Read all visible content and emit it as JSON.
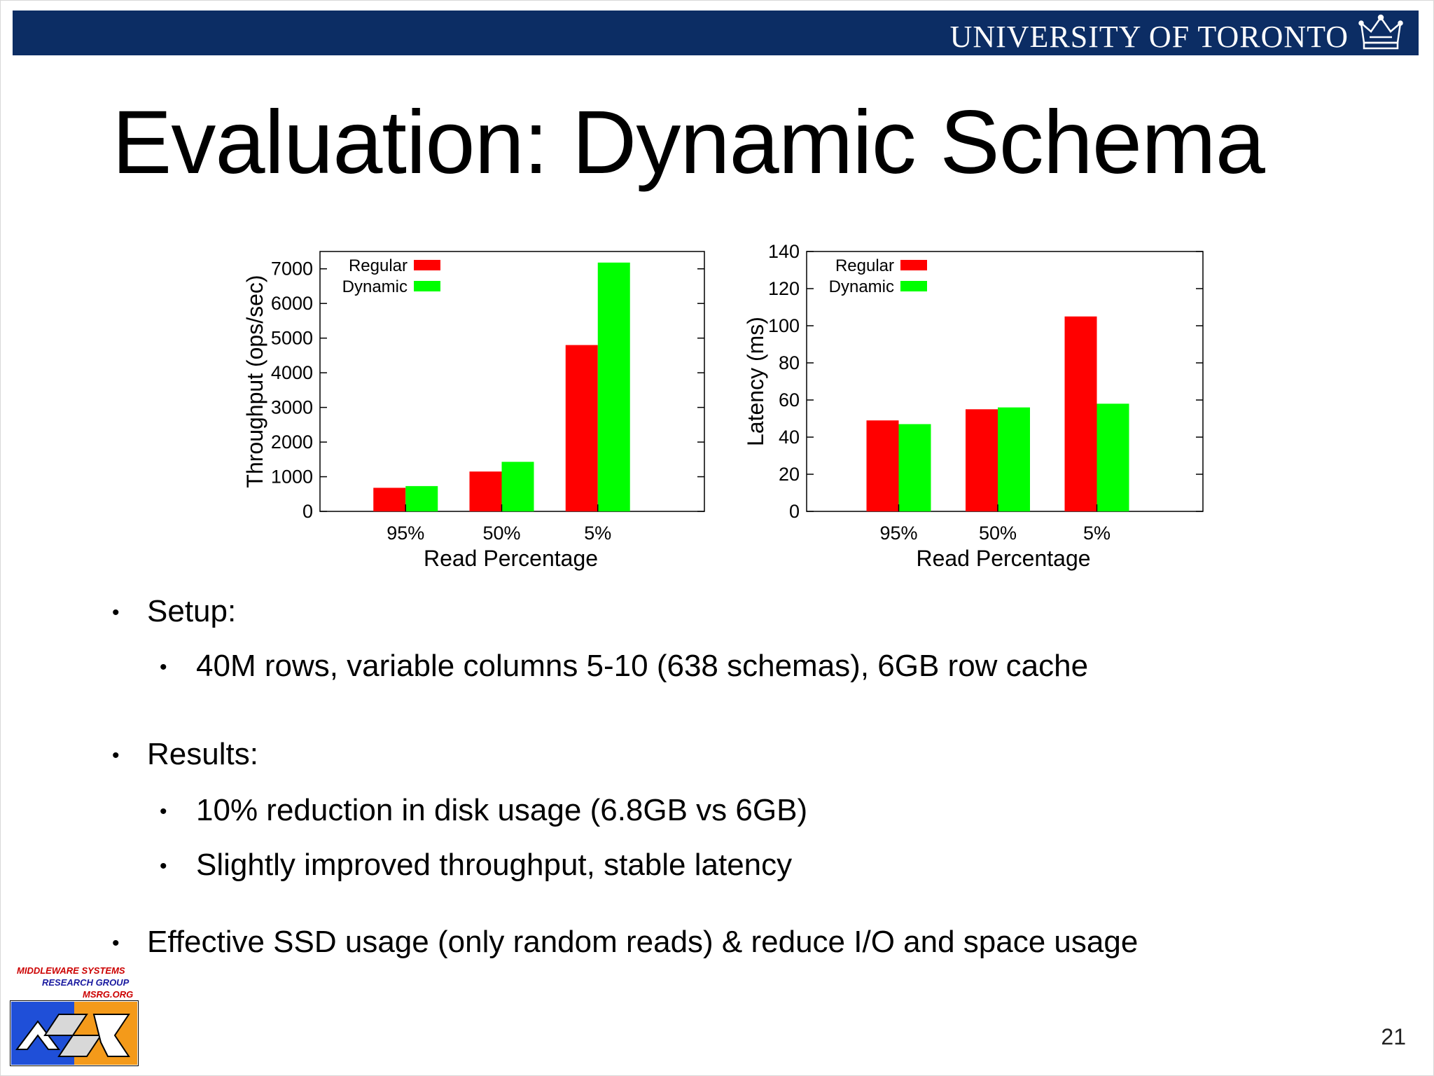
{
  "header": {
    "institution": "UNIVERSITY OF TORONTO"
  },
  "slide": {
    "title": "Evaluation: Dynamic Schema",
    "page_number": "21"
  },
  "bullets": {
    "setup": "Setup:",
    "setup_detail": "40M rows, variable columns 5-10 (638 schemas), 6GB row cache",
    "results": "Results:",
    "result_1": "10% reduction in disk usage (6.8GB vs 6GB)",
    "result_2": "Slightly improved throughput, stable latency",
    "conclusion": "Effective SSD usage (only random reads) & reduce I/O and space usage"
  },
  "logo": {
    "line1": "MIDDLEWARE SYSTEMS",
    "line2": "RESEARCH GROUP",
    "line3": "MSRG.ORG"
  },
  "colors": {
    "header_band": "#0c2d64",
    "regular": "#ff0000",
    "dynamic": "#00ff00"
  },
  "chart_data": [
    {
      "type": "bar",
      "categories": [
        "95%",
        "50%",
        "5%"
      ],
      "series": [
        {
          "name": "Regular",
          "values": [
            680,
            1150,
            4800
          ]
        },
        {
          "name": "Dynamic",
          "values": [
            730,
            1430,
            7180
          ]
        }
      ],
      "xlabel": "Read Percentage",
      "ylabel": "Throughput (ops/sec)",
      "ylim": [
        0,
        7500
      ],
      "yticks": [
        0,
        1000,
        2000,
        3000,
        4000,
        5000,
        6000,
        7000
      ],
      "legend": "top-left",
      "grid": false
    },
    {
      "type": "bar",
      "categories": [
        "95%",
        "50%",
        "5%"
      ],
      "series": [
        {
          "name": "Regular",
          "values": [
            49,
            55,
            105
          ]
        },
        {
          "name": "Dynamic",
          "values": [
            47,
            56,
            58
          ]
        }
      ],
      "xlabel": "Read Percentage",
      "ylabel": "Latency (ms)",
      "ylim": [
        0,
        140
      ],
      "yticks": [
        0,
        20,
        40,
        60,
        80,
        100,
        120,
        140
      ],
      "legend": "top-left",
      "grid": false
    }
  ]
}
